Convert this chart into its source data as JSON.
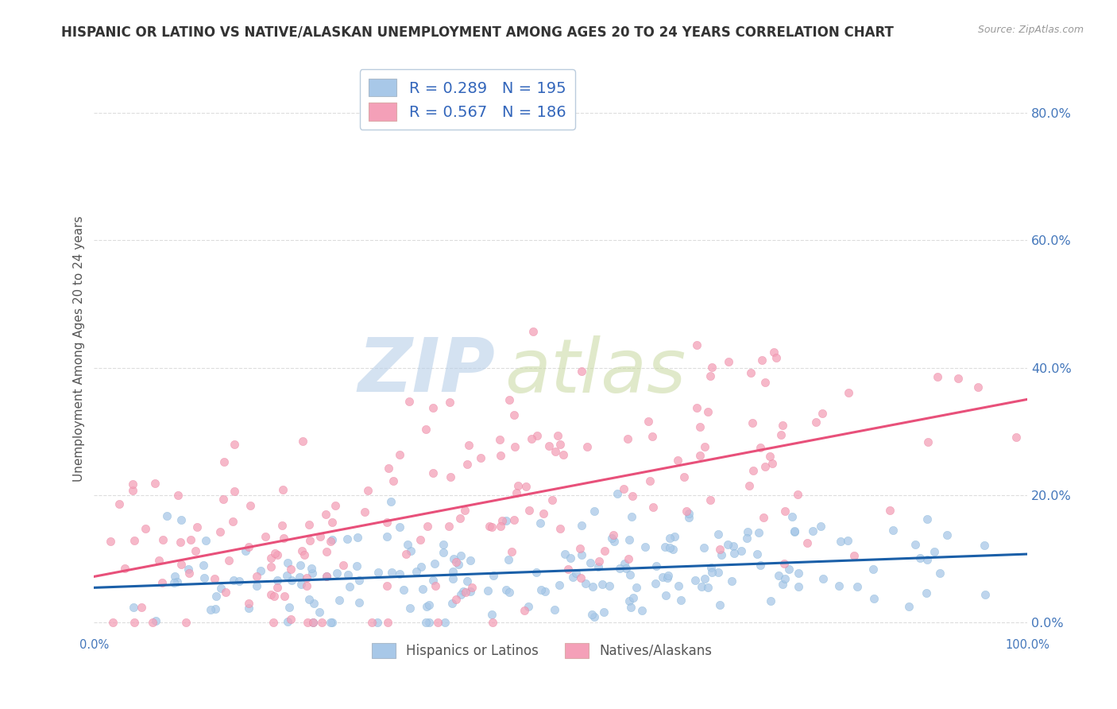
{
  "title": "HISPANIC OR LATINO VS NATIVE/ALASKAN UNEMPLOYMENT AMONG AGES 20 TO 24 YEARS CORRELATION CHART",
  "source": "Source: ZipAtlas.com",
  "ylabel": "Unemployment Among Ages 20 to 24 years",
  "xlim": [
    0.0,
    1.0
  ],
  "ylim": [
    -0.02,
    0.88
  ],
  "blue_R": 0.289,
  "blue_N": 195,
  "pink_R": 0.567,
  "pink_N": 186,
  "blue_color": "#a8c8e8",
  "blue_edge_color": "#7aafd4",
  "blue_line_color": "#1a5fa8",
  "pink_color": "#f4a0b8",
  "pink_edge_color": "#e87898",
  "pink_line_color": "#e8507a",
  "watermark_zip": "ZIP",
  "watermark_atlas": "atlas",
  "legend_label_blue": "Hispanics or Latinos",
  "legend_label_pink": "Natives/Alaskans",
  "ytick_labels": [
    "0.0%",
    "20.0%",
    "40.0%",
    "60.0%",
    "80.0%"
  ],
  "ytick_values": [
    0.0,
    0.2,
    0.4,
    0.6,
    0.8
  ],
  "xtick_labels": [
    "0.0%",
    "100.0%"
  ],
  "xtick_values": [
    0.0,
    1.0
  ],
  "background_color": "#ffffff",
  "grid_color": "#dddddd",
  "title_fontsize": 12,
  "axis_label_fontsize": 11,
  "tick_fontsize": 10.5,
  "legend_fontsize": 14,
  "blue_seed": 42,
  "pink_seed": 7
}
